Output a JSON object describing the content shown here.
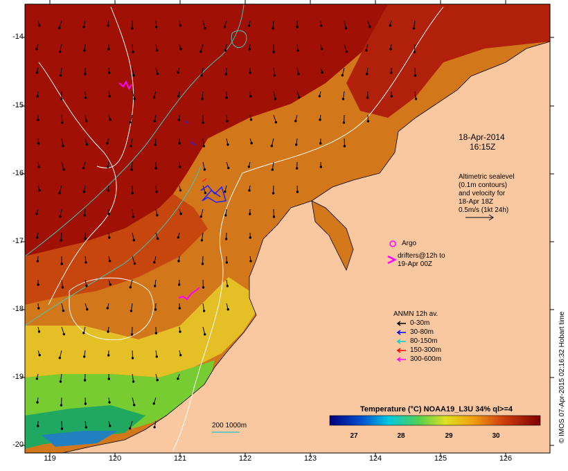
{
  "map": {
    "date": "18-Apr-2014",
    "time": "16:15Z",
    "altimetry_note": [
      "Altimetric sealevel",
      "(0.1m contours)",
      "and velocity for",
      "18-Apr 18Z",
      "0.5m/s (1kt 24h)"
    ],
    "argo_label": "Argo",
    "drifters_note": [
      "drifters@12h to",
      "19-Apr 00Z"
    ],
    "isobath_label": "200  1000m",
    "credit": "© IMOS 07-Apr-2015 02:16:32 Hobart time"
  },
  "axes": {
    "lat_ticks": [
      "-14",
      "-15",
      "-16",
      "-17",
      "-18",
      "-19",
      "-20"
    ],
    "lon_ticks": [
      "119",
      "120",
      "121",
      "122",
      "123",
      "124",
      "125",
      "126"
    ]
  },
  "anmn_legend": {
    "title": "ANMN 12h av.",
    "items": [
      {
        "label": "0-30m",
        "color": "#000000"
      },
      {
        "label": "30-80m",
        "color": "#0000ff"
      },
      {
        "label": "80-150m",
        "color": "#00d0d0"
      },
      {
        "label": "150-300m",
        "color": "#ff0000"
      },
      {
        "label": "300-600m",
        "color": "#ff00ff"
      }
    ]
  },
  "colorbar": {
    "title": "Temperature (°C) NOAA19_L3U 34% ql>=4",
    "ticks": [
      "27",
      "28",
      "29",
      "30"
    ]
  },
  "colors": {
    "land": "#fac8a0",
    "warm": "#a01005",
    "hot": "#c43a0a",
    "orange": "#d2781a",
    "yellow": "#e6c628",
    "green": "#76cc30",
    "cool_green": "#20a860",
    "isobath_200": "#60d0c0",
    "isobath_1000": "#ffffff",
    "argo": "#ff00ff"
  }
}
